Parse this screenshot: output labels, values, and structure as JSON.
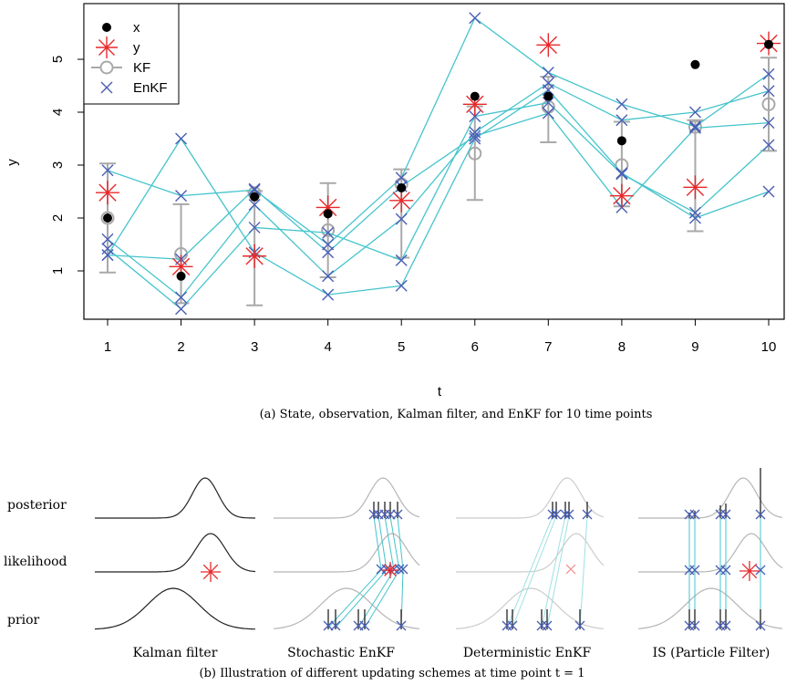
{
  "chart_data": [
    {
      "type": "line",
      "caption": "(a) State, observation, Kalman filter, and EnKF for 10 time points",
      "xlabel": "t",
      "ylabel": "y",
      "x": [
        1,
        2,
        3,
        4,
        5,
        6,
        7,
        8,
        9,
        10
      ],
      "xlim": [
        1,
        10
      ],
      "ylim": [
        0.2,
        5.9
      ],
      "xticks": [
        "1",
        "2",
        "3",
        "4",
        "5",
        "6",
        "7",
        "8",
        "9",
        "10"
      ],
      "yticks": [
        "1",
        "2",
        "3",
        "4",
        "5"
      ],
      "legend": {
        "position": "top-left",
        "entries": [
          "x",
          "y",
          "KF",
          "EnKF"
        ]
      },
      "colors": {
        "x": "#000000",
        "y": "#e8282a",
        "KF": "#a9a9a9",
        "EnKF": "#4a5fb5",
        "ensemble_line": "#45c4cc"
      },
      "series": [
        {
          "name": "x",
          "values": [
            2.0,
            0.9,
            2.4,
            2.08,
            2.57,
            4.3,
            4.3,
            3.46,
            4.9,
            5.28
          ]
        },
        {
          "name": "y",
          "values": [
            2.48,
            1.08,
            1.28,
            2.2,
            2.33,
            4.15,
            5.27,
            2.42,
            2.58,
            5.3
          ]
        },
        {
          "name": "KF",
          "values": [
            2.0,
            1.32,
            2.47,
            1.77,
            2.64,
            3.22,
            4.1,
            3.0,
            3.72,
            4.15
          ],
          "lower": [
            0.97,
            0.39,
            0.35,
            0.88,
            1.25,
            2.34,
            3.43,
            2.22,
            1.75,
            3.27
          ],
          "upper": [
            3.03,
            2.26,
            2.51,
            2.66,
            2.92,
            4.11,
            4.67,
            3.82,
            3.85,
            5.03
          ]
        },
        {
          "name": "EnKF",
          "members": [
            [
              2.9,
              2.42,
              2.53,
              1.5,
              2.76,
              5.78,
              4.75,
              4.15,
              3.73,
              4.72
            ],
            [
              1.6,
              0.5,
              2.25,
              0.9,
              1.98,
              3.62,
              4.55,
              3.85,
              4.0,
              4.4
            ],
            [
              1.42,
              0.28,
              1.82,
              1.72,
              1.2,
              3.92,
              4.18,
              2.83,
              2.1,
              3.38
            ],
            [
              1.3,
              1.22,
              2.55,
              1.35,
              2.6,
              3.55,
              3.98,
              2.2,
              3.7,
              3.8
            ],
            [
              1.3,
              3.5,
              1.35,
              0.55,
              0.72,
              3.5,
              4.42,
              2.85,
              2.0,
              2.5
            ]
          ]
        }
      ]
    },
    {
      "type": "diagram",
      "caption": "(b) Illustration of different updating schemes at time point t = 1",
      "row_labels": [
        "posterior",
        "likelihood",
        "prior"
      ],
      "panels": [
        "Kalman filter",
        "Stochastic EnKF",
        "Deterministic EnKF",
        "IS (Particle Filter)"
      ]
    }
  ]
}
